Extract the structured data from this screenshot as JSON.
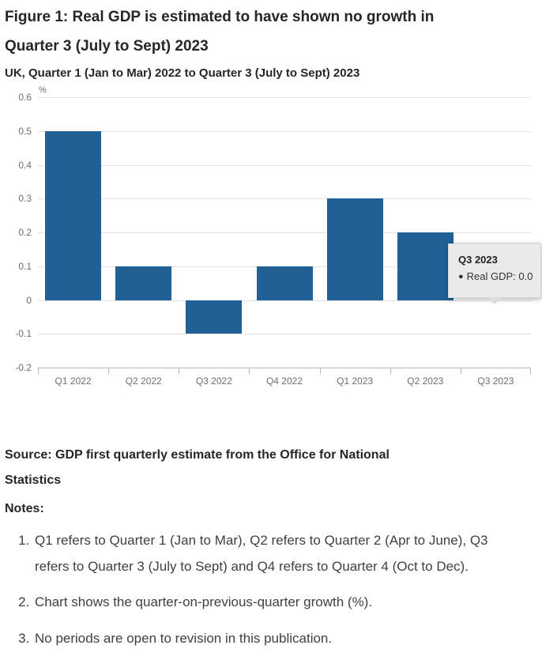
{
  "page": {
    "title": "Figure 1: Real GDP is estimated to have shown no growth in Quarter 3 (July to Sept) 2023",
    "subtitle": "UK, Quarter 1 (Jan to Mar) 2022 to Quarter 3 (July to Sept) 2023"
  },
  "chart_data": {
    "type": "bar",
    "title": "Figure 1: Real GDP is estimated to have shown no growth in Quarter 3 (July to Sept) 2023",
    "subtitle": "UK, Quarter 1 (Jan to Mar) 2022 to Quarter 3 (July to Sept) 2023",
    "unit_label": "%",
    "xlabel": "",
    "ylabel": "%",
    "categories": [
      "Q1 2022",
      "Q2 2022",
      "Q3 2022",
      "Q4 2022",
      "Q1 2023",
      "Q2 2023",
      "Q3 2023"
    ],
    "series": [
      {
        "name": "Real GDP",
        "values": [
          0.5,
          0.1,
          -0.1,
          0.1,
          0.3,
          0.2,
          0.0
        ]
      }
    ],
    "ylim": [
      -0.2,
      0.6
    ],
    "ytick_labels": [
      "0.6",
      "0.5",
      "0.4",
      "0.3",
      "0.2",
      "0.1",
      "0",
      "-0.1",
      "-0.2"
    ],
    "grid": true,
    "legend": "none",
    "bar_color": "#206095",
    "tooltip": {
      "title": "Q3 2023",
      "bullet": "●",
      "label": "Real GDP: 0.0"
    }
  },
  "source": {
    "text": "Source: GDP first quarterly estimate from the Office for National Statistics"
  },
  "notes": {
    "heading": "Notes:",
    "items": [
      "Q1 refers to Quarter 1 (Jan to Mar), Q2 refers to Quarter 2 (Apr to June), Q3 refers to Quarter 3 (July to Sept) and Q4 refers to Quarter 4 (Oct to Dec).",
      "Chart shows the quarter-on-previous-quarter growth (%).",
      "No periods are open to revision in this publication."
    ]
  }
}
